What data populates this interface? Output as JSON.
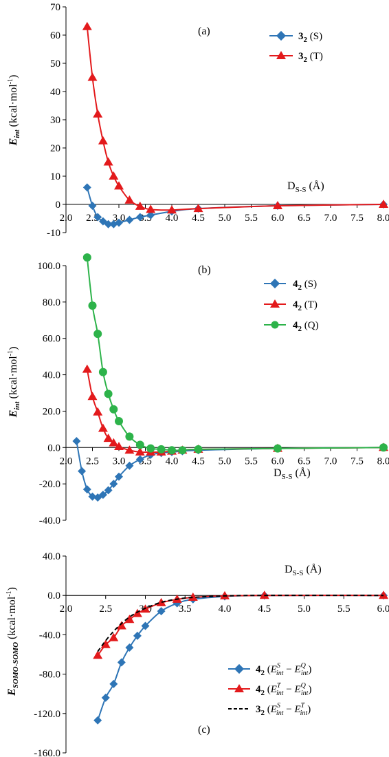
{
  "chart_data": [
    {
      "type": "line",
      "panel_label": "(a)",
      "ylabel": "E_int (kcal·mol-1)",
      "xlabel": "DS-S (Å)",
      "xlim": [
        2.0,
        8.0
      ],
      "ylim": [
        -10,
        70
      ],
      "xticks": [
        "2.0",
        "2.5",
        "3.0",
        "3.5",
        "4.0",
        "4.5",
        "5.0",
        "5.5",
        "6.0",
        "6.5",
        "7.0",
        "7.5",
        "8.0"
      ],
      "yticks": [
        "-10",
        "0",
        "10",
        "20",
        "30",
        "40",
        "50",
        "60",
        "70"
      ],
      "legend_position": "top-right",
      "grid": false,
      "series": [
        {
          "name": "3₂ (S)",
          "color": "#2e75b6",
          "marker": "diamond",
          "x": [
            2.4,
            2.5,
            2.6,
            2.7,
            2.8,
            2.9,
            3.0,
            3.2,
            3.4,
            3.6,
            4.0,
            4.5,
            6.0,
            8.0
          ],
          "y": [
            6.0,
            -0.5,
            -4.5,
            -6.0,
            -7.0,
            -7.0,
            -6.5,
            -5.5,
            -4.5,
            -3.8,
            -2.5,
            -1.5,
            -0.5,
            0.0
          ]
        },
        {
          "name": "3₂ (T)",
          "color": "#e31a1c",
          "marker": "triangle",
          "x": [
            2.4,
            2.5,
            2.6,
            2.7,
            2.8,
            2.9,
            3.0,
            3.2,
            3.4,
            3.6,
            4.0,
            4.5,
            6.0,
            8.0
          ],
          "y": [
            63.0,
            45.0,
            32.0,
            22.5,
            15.0,
            10.0,
            6.5,
            1.5,
            -0.7,
            -1.8,
            -2.0,
            -1.5,
            -0.5,
            0.0
          ]
        }
      ]
    },
    {
      "type": "line",
      "panel_label": "(b)",
      "ylabel": "E_int (kcal·mol-1)",
      "xlabel": "DS-S (Å)",
      "xlim": [
        2.0,
        8.0
      ],
      "ylim": [
        -40,
        100
      ],
      "xticks": [
        "2.0",
        "2.5",
        "3.0",
        "3.5",
        "4.0",
        "4.5",
        "5.0",
        "5.5",
        "6.0",
        "6.5",
        "7.0",
        "7.5",
        "8.0"
      ],
      "yticks": [
        "-40.0",
        "-20.0",
        "0.0",
        "20.0",
        "40.0",
        "60.0",
        "80.0",
        "100.0"
      ],
      "legend_position": "top-right",
      "grid": false,
      "series": [
        {
          "name": "4₂ (S)",
          "color": "#2e75b6",
          "marker": "diamond",
          "x": [
            2.2,
            2.3,
            2.4,
            2.5,
            2.6,
            2.7,
            2.8,
            2.9,
            3.0,
            3.2,
            3.4,
            3.6,
            3.8,
            4.0,
            4.2,
            4.5,
            6.0,
            8.0
          ],
          "y": [
            3.5,
            -13.0,
            -23.0,
            -27.0,
            -27.5,
            -26.0,
            -23.5,
            -20.0,
            -16.0,
            -10.0,
            -6.5,
            -4.0,
            -3.0,
            -2.5,
            -2.0,
            -1.5,
            -0.5,
            0.0
          ]
        },
        {
          "name": "4₂ (T)",
          "color": "#e31a1c",
          "marker": "triangle",
          "x": [
            2.4,
            2.5,
            2.6,
            2.7,
            2.8,
            2.9,
            3.0,
            3.2,
            3.4,
            3.6,
            3.8,
            4.0,
            4.2,
            4.5,
            6.0,
            8.0
          ],
          "y": [
            43.0,
            28.0,
            19.5,
            10.5,
            5.0,
            2.5,
            0.5,
            -1.5,
            -2.5,
            -2.5,
            -2.5,
            -2.0,
            -1.5,
            -1.0,
            -0.5,
            0.0
          ]
        },
        {
          "name": "4₂ (Q)",
          "color": "#2db34a",
          "marker": "circle",
          "x": [
            2.4,
            2.5,
            2.6,
            2.7,
            2.8,
            2.9,
            3.0,
            3.2,
            3.4,
            3.6,
            3.8,
            4.0,
            4.2,
            4.5,
            6.0,
            8.0
          ],
          "y": [
            104.5,
            78.0,
            62.5,
            41.5,
            29.5,
            21.0,
            14.5,
            6.0,
            1.5,
            -0.5,
            -1.0,
            -1.5,
            -1.5,
            -1.0,
            -0.5,
            0.0
          ]
        }
      ]
    },
    {
      "type": "line",
      "panel_label": "(c)",
      "ylabel": "E_SOMO-SOMO (kcal·mol-1)",
      "xlabel": "DS-S (Å)",
      "xlim": [
        2.0,
        6.0
      ],
      "ylim": [
        -160,
        40
      ],
      "xticks": [
        "2.0",
        "2.5",
        "3.0",
        "3.5",
        "4.0",
        "4.5",
        "5.0",
        "5.5",
        "6.0"
      ],
      "yticks": [
        "-160.0",
        "-120.0",
        "-80.0",
        "-40.0",
        "0.0",
        "40.0"
      ],
      "legend_position": "bottom-right",
      "grid": false,
      "series": [
        {
          "name": "4₂ (E^S_int − E^Q_int)",
          "color": "#2e75b6",
          "marker": "diamond",
          "x": [
            2.4,
            2.5,
            2.6,
            2.7,
            2.8,
            2.9,
            3.0,
            3.2,
            3.4,
            3.6,
            4.0,
            4.5,
            6.0
          ],
          "y": [
            -127.0,
            -104.0,
            -90.0,
            -68.0,
            -53.0,
            -41.0,
            -31.0,
            -16.0,
            -8.0,
            -4.0,
            -1.0,
            0.0,
            0.0
          ]
        },
        {
          "name": "4₂ (E^T_int − E^Q_int)",
          "color": "#e31a1c",
          "marker": "triangle",
          "x": [
            2.4,
            2.5,
            2.6,
            2.7,
            2.8,
            2.9,
            3.0,
            3.2,
            3.4,
            3.6,
            4.0,
            4.5,
            6.0
          ],
          "y": [
            -61.0,
            -50.0,
            -43.0,
            -31.0,
            -24.5,
            -18.5,
            -14.0,
            -7.5,
            -4.0,
            -2.0,
            -0.5,
            0.0,
            0.0
          ]
        },
        {
          "name": "3₂ (E^S_int − E^T_int)",
          "color": "#000000",
          "marker": "none",
          "dashed": true,
          "x": [
            2.4,
            2.5,
            2.6,
            2.7,
            2.8,
            2.9,
            3.0,
            3.2,
            3.4,
            3.6,
            4.0,
            4.5,
            6.0
          ],
          "y": [
            -57.0,
            -46.0,
            -36.5,
            -28.5,
            -22.0,
            -17.0,
            -13.0,
            -7.0,
            -3.8,
            -2.0,
            -0.5,
            0.0,
            0.0
          ]
        }
      ]
    }
  ]
}
